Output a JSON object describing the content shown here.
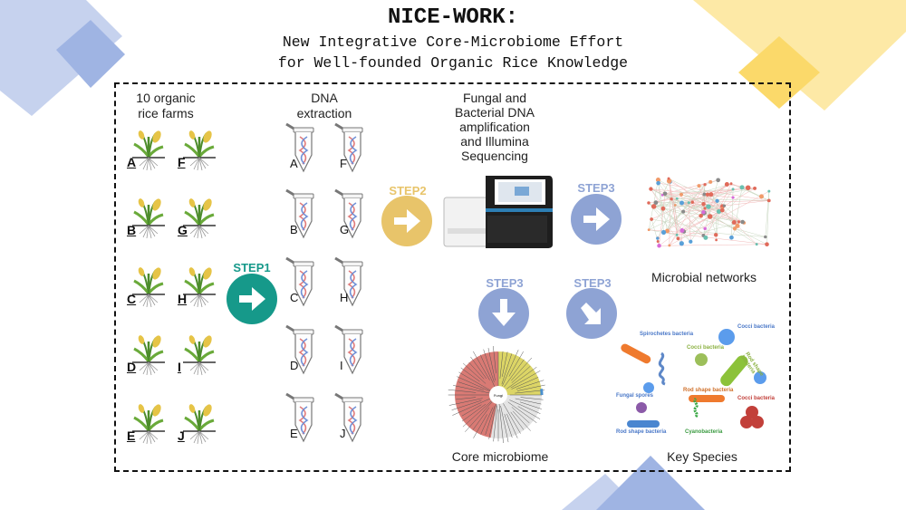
{
  "title": "NICE-WORK:",
  "subtitle_line1": "New Integrative Core-Microbiome Effort",
  "subtitle_line2": "for Well-founded Organic Rice Knowledge",
  "farms": {
    "label_line1": "10 organic",
    "label_line2": "rice farms",
    "letters": [
      "A",
      "B",
      "C",
      "D",
      "E",
      "F",
      "G",
      "H",
      "I",
      "J"
    ]
  },
  "dna": {
    "label_line1": "DNA",
    "label_line2": "extraction"
  },
  "sequencing": {
    "label_lines": [
      "Fungal and",
      "Bacterial DNA",
      "amplification",
      "and Illumina",
      "Sequencing"
    ]
  },
  "steps": {
    "step1": "STEP1",
    "step2": "STEP2",
    "step3": "STEP3"
  },
  "outputs": {
    "networks": "Microbial networks",
    "core": "Core microbiome",
    "key_species": "Key Species"
  },
  "key_species_legend": {
    "spirochetes": "Spirochetes bacteria",
    "cocci_top": "Cocci bacteria",
    "cocci_mid": "Cocci bacteria",
    "rod_right": "Rod shape bacteria",
    "fungal": "Fungal spores",
    "rod_mid": "Rod shape bacteria",
    "cocci_low": "Cocci bacteria",
    "cyano": "Cyanobacteria",
    "rod_bottom": "Rod shape bacteria"
  },
  "core_center_label": "Fungi",
  "colors": {
    "step1": "#16998a",
    "step2": "#e8c46a",
    "step3": "#8ea3d4",
    "deco_blue": "#9fb4e3",
    "deco_yellow": "#fbd96a"
  },
  "icons": {
    "arrow": "arrow-right-icon",
    "arrow_down": "arrow-down-icon",
    "arrow_diag": "arrow-down-right-icon",
    "plant": "rice-plant-icon",
    "tube": "dna-tube-icon",
    "sequencer": "sequencer-icon"
  }
}
